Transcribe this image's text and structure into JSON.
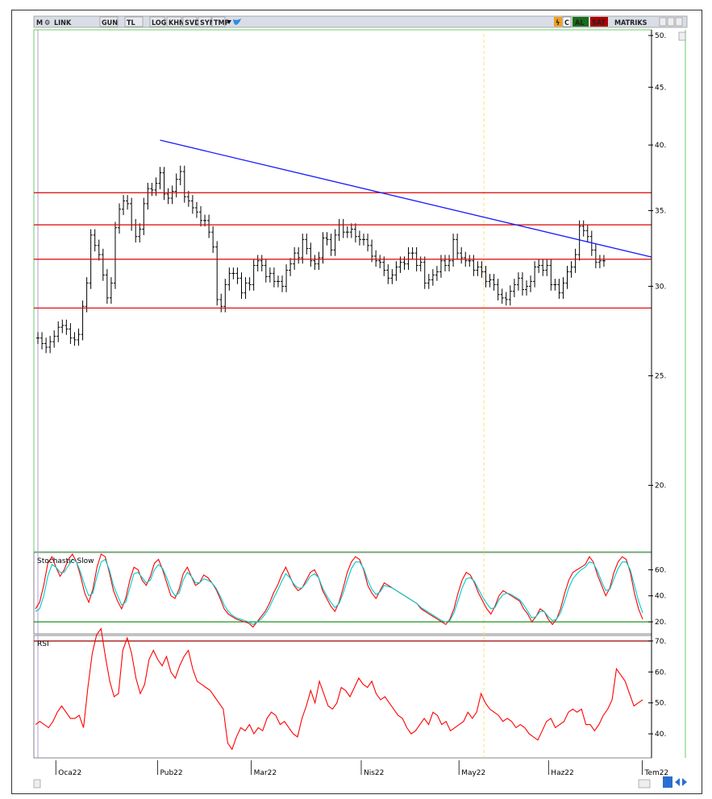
{
  "toolbar": {
    "symbol_prefix": "M",
    "symbol": "LINK",
    "buttons": [
      "GUN",
      "TL",
      "LOG",
      "KHN",
      "SVD",
      "SYM",
      "TMP"
    ],
    "al_label": "AL",
    "sat_label": "SAT",
    "brand": "MATRIKS",
    "c_label": "C"
  },
  "colors": {
    "price_bars": "#000000",
    "support_resistance": "#dd0000",
    "trendline": "#1a1aff",
    "stoch_main": "#ff0000",
    "stoch_signal": "#00cccc",
    "stoch_ref": "#008800",
    "rsi_line": "#ff0000",
    "rsi_ref": "#990000",
    "cursor_line": "#ffe066",
    "panel_border": "#66cc66"
  },
  "chart_data": [
    {
      "type": "ohlc",
      "title": "",
      "y_ticks": [
        50,
        45,
        40,
        35,
        30,
        25,
        20
      ],
      "y_tick_labels": [
        "50.",
        "45.",
        "40.",
        "35.",
        "30.",
        "25.",
        "20."
      ],
      "y_scale": "log",
      "ylim": [
        17.5,
        50.5
      ],
      "horizontal_levels": [
        36.3,
        34.0,
        31.7,
        28.7
      ],
      "trendline": {
        "from": {
          "bar": 30,
          "value": 40.4
        },
        "to": {
          "bar": 161,
          "value": 31.2
        }
      },
      "x_labels": [
        "Oca22",
        "Pub22",
        "Mar22",
        "Nis22",
        "May22",
        "Haz22",
        "Tem22"
      ],
      "x_label_bars": [
        5,
        30,
        53,
        80,
        104,
        126,
        149
      ],
      "closes": [
        27.0,
        26.7,
        26.5,
        26.8,
        27.1,
        27.6,
        27.7,
        27.5,
        27.0,
        26.9,
        27.2,
        28.8,
        30.2,
        33.3,
        32.6,
        32.0,
        30.7,
        29.3,
        30.2,
        33.8,
        35.1,
        35.7,
        35.5,
        34.0,
        33.2,
        33.7,
        35.5,
        36.6,
        36.5,
        37.0,
        37.8,
        36.2,
        35.9,
        36.4,
        37.3,
        37.9,
        36.0,
        35.7,
        35.2,
        34.9,
        34.3,
        34.3,
        33.5,
        32.5,
        29.2,
        28.8,
        30.1,
        30.8,
        30.8,
        30.5,
        29.6,
        30.2,
        30.1,
        31.3,
        31.6,
        31.3,
        30.6,
        30.8,
        30.3,
        30.3,
        30.0,
        31.0,
        31.4,
        32.1,
        31.8,
        33.0,
        32.4,
        31.6,
        31.4,
        31.8,
        33.1,
        33.0,
        32.3,
        33.3,
        34.0,
        33.5,
        33.5,
        33.7,
        33.2,
        33.0,
        33.0,
        32.6,
        31.9,
        31.6,
        31.5,
        31.0,
        30.5,
        30.7,
        31.2,
        31.5,
        31.4,
        32.1,
        32.1,
        31.3,
        31.5,
        30.2,
        30.4,
        30.7,
        30.9,
        31.6,
        31.3,
        31.6,
        33.0,
        32.1,
        31.8,
        31.6,
        31.6,
        31.0,
        31.2,
        30.9,
        30.3,
        30.4,
        30.1,
        29.5,
        29.3,
        29.2,
        29.7,
        30.1,
        30.5,
        29.8,
        30.0,
        30.3,
        31.2,
        31.3,
        31.0,
        31.3,
        30.1,
        30.1,
        29.6,
        30.2,
        30.9,
        31.2,
        32.0,
        33.9,
        33.6,
        33.2,
        32.3,
        31.5,
        31.6,
        31.6
      ]
    },
    {
      "type": "line",
      "title": "Stochastic Slow",
      "y_ticks": [
        60,
        40,
        20
      ],
      "y_tick_labels": [
        "60.",
        "40.",
        "20."
      ],
      "ylim": [
        12,
        72
      ],
      "reference_line": 20,
      "series": [
        {
          "name": "",
          "values": [
            30,
            35,
            48,
            65,
            70,
            62,
            55,
            60,
            68,
            72,
            66,
            55,
            42,
            35,
            45,
            62,
            72,
            70,
            58,
            44,
            36,
            30,
            38,
            52,
            62,
            60,
            52,
            48,
            55,
            65,
            68,
            60,
            50,
            40,
            38,
            45,
            57,
            62,
            55,
            48,
            50,
            56,
            54,
            50,
            45,
            38,
            30,
            26,
            24,
            22,
            21,
            20,
            19,
            16,
            20,
            24,
            28,
            34,
            42,
            48,
            56,
            62,
            55,
            48,
            44,
            46,
            52,
            58,
            60,
            54,
            44,
            38,
            32,
            28,
            35,
            46,
            58,
            66,
            70,
            68,
            60,
            48,
            42,
            38,
            44,
            50,
            48,
            46,
            44,
            42,
            40,
            38,
            36,
            34,
            30,
            28,
            26,
            24,
            22,
            20,
            18,
            22,
            30,
            42,
            52,
            58,
            56,
            50,
            42,
            36,
            30,
            26,
            32,
            40,
            44,
            42,
            40,
            38,
            36,
            30,
            26,
            20,
            24,
            30,
            28,
            22,
            18,
            22,
            30,
            42,
            52,
            58,
            60,
            62,
            64,
            70,
            66,
            56,
            48,
            40,
            46,
            58,
            66,
            70,
            68,
            58,
            42,
            30,
            22
          ]
        },
        {
          "name": "",
          "values": [
            28,
            30,
            40,
            55,
            64,
            62,
            58,
            58,
            63,
            68,
            66,
            58,
            48,
            40,
            42,
            55,
            66,
            68,
            60,
            48,
            40,
            33,
            35,
            46,
            57,
            58,
            54,
            50,
            52,
            60,
            64,
            61,
            54,
            45,
            40,
            42,
            52,
            58,
            55,
            50,
            50,
            53,
            52,
            50,
            46,
            40,
            33,
            28,
            25,
            23,
            22,
            21,
            20,
            18,
            20,
            22,
            26,
            31,
            38,
            44,
            51,
            57,
            54,
            49,
            46,
            46,
            50,
            55,
            57,
            54,
            46,
            40,
            35,
            31,
            34,
            42,
            52,
            61,
            66,
            66,
            61,
            52,
            45,
            41,
            43,
            48,
            47,
            46,
            44,
            42,
            40,
            38,
            36,
            34,
            31,
            29,
            27,
            25,
            23,
            21,
            20,
            21,
            27,
            36,
            46,
            53,
            54,
            51,
            45,
            39,
            34,
            30,
            31,
            37,
            41,
            42,
            41,
            39,
            37,
            33,
            28,
            23,
            24,
            28,
            28,
            24,
            21,
            22,
            27,
            36,
            46,
            53,
            57,
            60,
            62,
            66,
            65,
            59,
            51,
            44,
            45,
            53,
            61,
            66,
            66,
            60,
            48,
            36,
            27
          ]
        }
      ]
    },
    {
      "type": "line",
      "title": "RSI",
      "y_ticks": [
        70,
        60,
        50,
        40
      ],
      "y_tick_labels": [
        "70.",
        "60.",
        "50.",
        "40."
      ],
      "ylim": [
        33,
        71
      ],
      "reference_line": 70,
      "series": [
        {
          "name": "",
          "values": [
            43,
            44,
            43,
            42,
            44,
            47,
            49,
            47,
            45,
            45,
            46,
            42,
            55,
            66,
            72,
            74,
            65,
            57,
            52,
            53,
            67,
            71,
            66,
            58,
            53,
            56,
            64,
            67,
            64,
            62,
            65,
            60,
            58,
            62,
            65,
            67,
            61,
            57,
            56,
            55,
            54,
            52,
            50,
            48,
            37,
            35,
            39,
            42,
            41,
            43,
            40,
            42,
            41,
            45,
            47,
            46,
            43,
            44,
            42,
            40,
            39,
            45,
            49,
            54,
            50,
            57,
            53,
            49,
            48,
            50,
            55,
            54,
            52,
            55,
            58,
            56,
            55,
            57,
            53,
            51,
            52,
            50,
            48,
            46,
            45,
            42,
            40,
            41,
            43,
            45,
            43,
            47,
            46,
            43,
            44,
            41,
            42,
            43,
            44,
            47,
            45,
            47,
            53,
            50,
            48,
            47,
            46,
            44,
            45,
            44,
            42,
            43,
            42,
            40,
            39,
            38,
            41,
            44,
            45,
            42,
            43,
            44,
            47,
            48,
            47,
            48,
            43,
            43,
            41,
            43,
            46,
            48,
            51,
            61,
            59,
            57,
            53,
            49,
            50,
            51
          ]
        }
      ]
    }
  ]
}
